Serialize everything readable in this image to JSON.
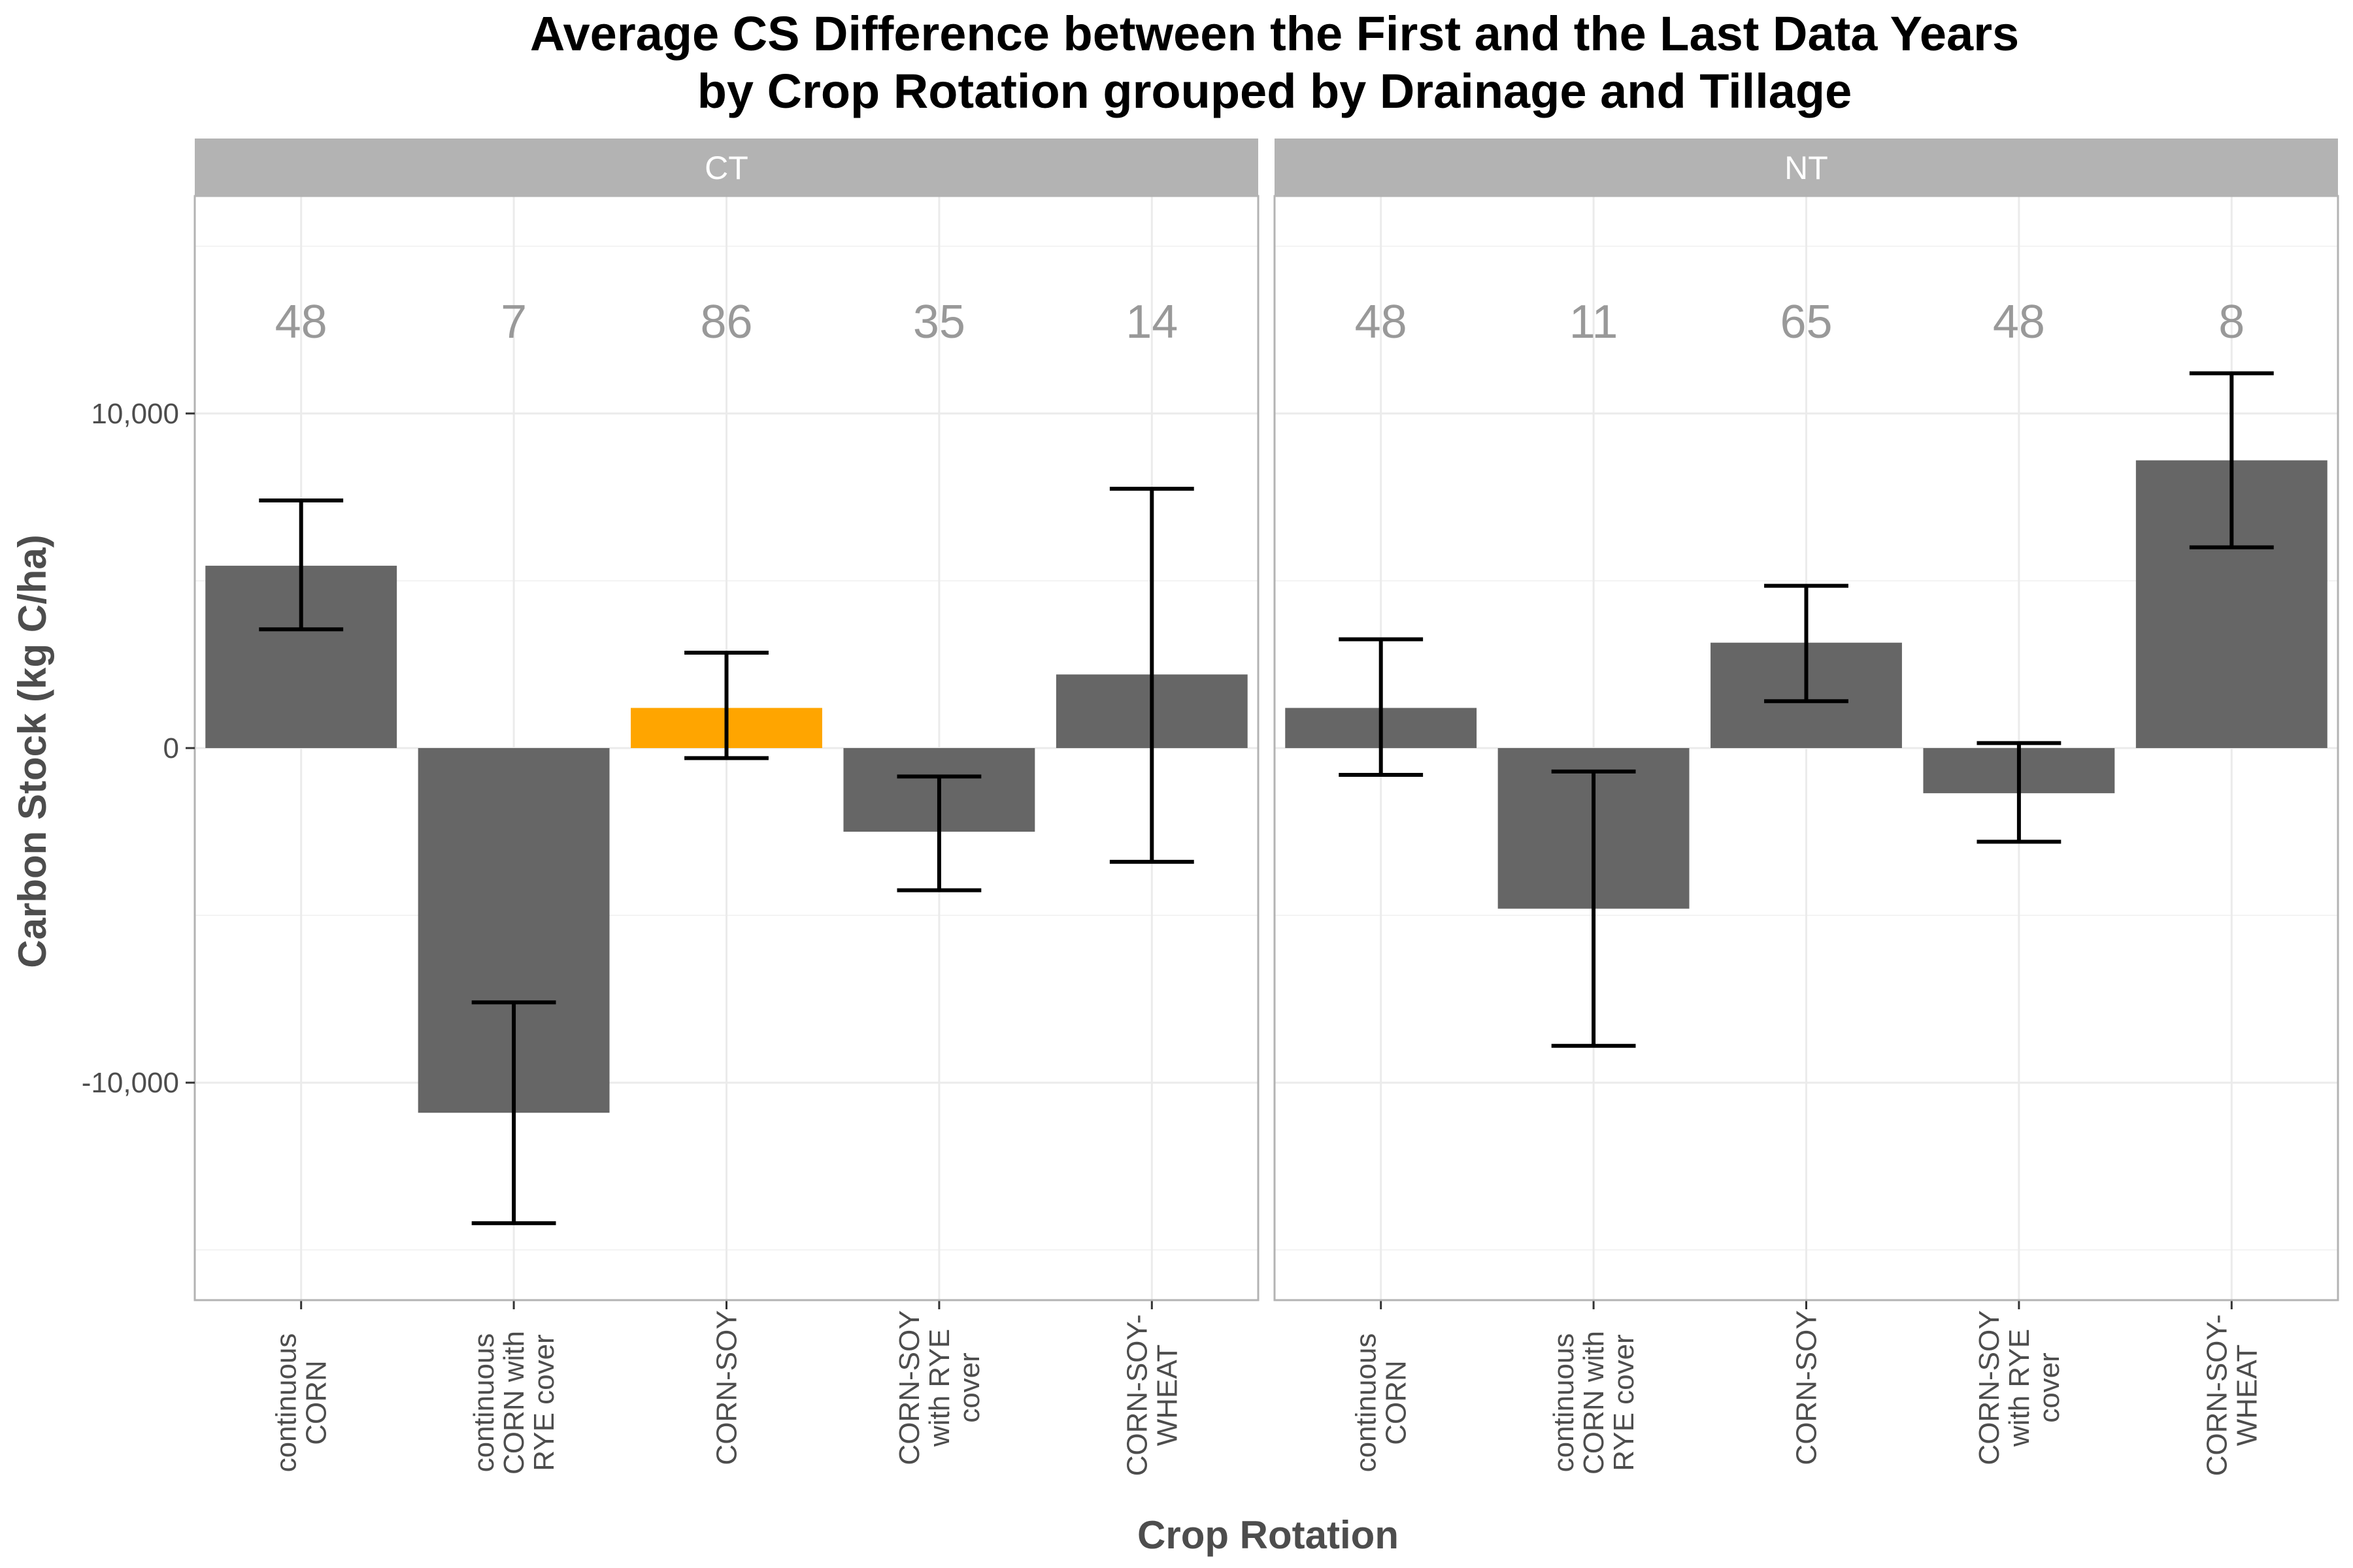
{
  "chart_data": {
    "type": "bar",
    "title": "Average CS Difference between the First and the Last Data Years",
    "subtitle": "by Crop Rotation grouped by Drainage and Tillage",
    "xlabel": "Crop Rotation",
    "ylabel": "Carbon Stock (kg C/ha)",
    "ylim": [
      -16500,
      16500
    ],
    "y_ticks": [
      -10000,
      0,
      10000
    ],
    "y_tick_labels": [
      "-10,000",
      "0",
      "10,000"
    ],
    "grid": true,
    "categories": [
      [
        "continuous",
        "CORN"
      ],
      [
        "continuous",
        "CORN with",
        "RYE cover"
      ],
      [
        "CORN-SOY"
      ],
      [
        "CORN-SOY",
        "with RYE",
        "cover"
      ],
      [
        "CORN-SOY-",
        "WHEAT"
      ]
    ],
    "panels": [
      {
        "name": "CT",
        "values": [
          5450,
          -10900,
          1200,
          -2500,
          2200
        ],
        "err_low": [
          3550,
          -14200,
          -300,
          -4250,
          -3400
        ],
        "err_high": [
          7400,
          -7600,
          2850,
          -850,
          7750
        ],
        "counts": [
          "48",
          "7",
          "86",
          "35",
          "14"
        ]
      },
      {
        "name": "NT",
        "values": [
          1200,
          -4800,
          3150,
          -1350,
          8600
        ],
        "err_low": [
          -800,
          -8900,
          1400,
          -2800,
          6000
        ],
        "err_high": [
          3250,
          -700,
          4850,
          150,
          11200
        ],
        "counts": [
          "48",
          "11",
          "65",
          "48",
          "8"
        ]
      }
    ],
    "highlight": {
      "panel": "CT",
      "category_index": 2
    },
    "colors": {
      "bar": "#666666",
      "highlight_bar": "#FFA500",
      "error_bar": "#000000",
      "strip": "#b3b3b3",
      "strip_text": "#ffffff",
      "count_text": "#999999",
      "grid": "#ebebeb",
      "panel_border": "#b3b3b3"
    }
  }
}
